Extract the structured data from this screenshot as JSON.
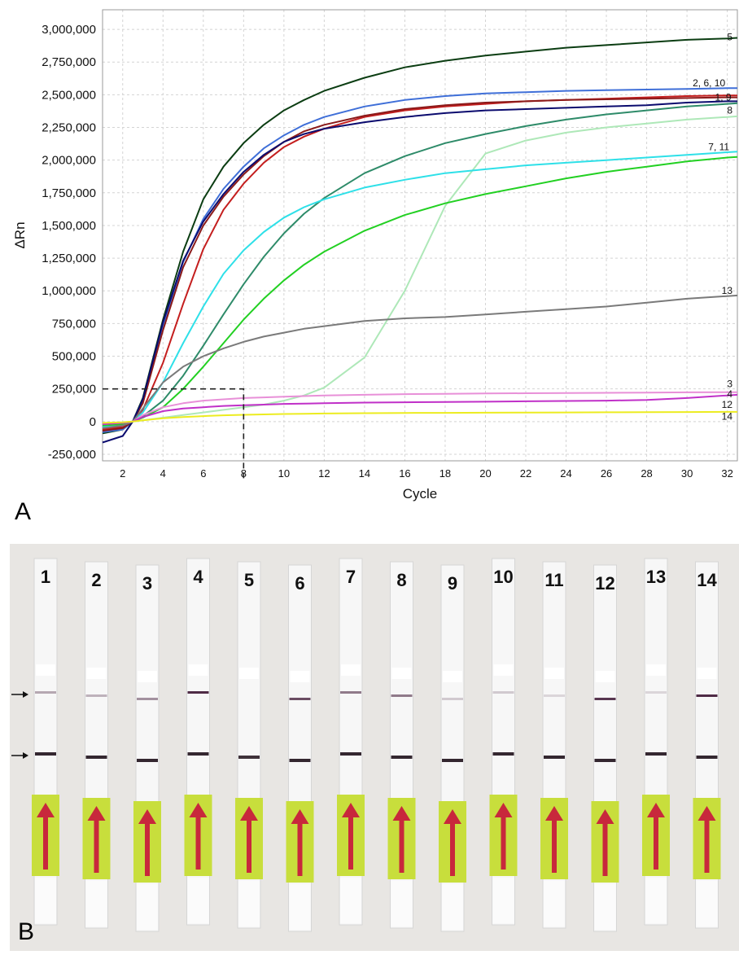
{
  "panels": {
    "a_label": "A",
    "b_label": "B"
  },
  "chart_data": {
    "type": "line",
    "xlabel": "Cycle",
    "ylabel": "ΔRn",
    "xlim": [
      1,
      32.5
    ],
    "ylim": [
      -300000,
      3150000
    ],
    "xticks": [
      2,
      4,
      6,
      8,
      10,
      12,
      14,
      16,
      18,
      20,
      22,
      24,
      26,
      28,
      30,
      32
    ],
    "yticks": [
      -250000,
      0,
      250000,
      500000,
      750000,
      1000000,
      1250000,
      1500000,
      1750000,
      2000000,
      2250000,
      2500000,
      2750000,
      3000000
    ],
    "ytick_labels": [
      "-250,000",
      "0",
      "250,000",
      "500,000",
      "750,000",
      "1,000,000",
      "1,250,000",
      "1,500,000",
      "1,750,000",
      "2,000,000",
      "2,250,000",
      "2,500,000",
      "2,750,000",
      "3,000,000"
    ],
    "grid": true,
    "threshold": {
      "y": 250000,
      "x": 8
    },
    "x": [
      1,
      2,
      2.5,
      3,
      4,
      5,
      6,
      7,
      8,
      9,
      10,
      11,
      12,
      14,
      16,
      18,
      20,
      22,
      24,
      26,
      28,
      30,
      32,
      32.5
    ],
    "series": [
      {
        "color": "#0b3d12",
        "values": [
          -90000,
          -60000,
          0,
          180000,
          780000,
          1300000,
          1700000,
          1950000,
          2130000,
          2270000,
          2380000,
          2460000,
          2530000,
          2630000,
          2710000,
          2760000,
          2800000,
          2830000,
          2860000,
          2880000,
          2900000,
          2920000,
          2930000,
          2935000
        ]
      },
      {
        "color": "#3f6fd8",
        "values": [
          -80000,
          -60000,
          0,
          150000,
          720000,
          1220000,
          1550000,
          1780000,
          1950000,
          2090000,
          2190000,
          2270000,
          2330000,
          2410000,
          2460000,
          2490000,
          2510000,
          2520000,
          2530000,
          2535000,
          2540000,
          2545000,
          2550000,
          2550000
        ]
      },
      {
        "color": "#c41e1e",
        "values": [
          -60000,
          -40000,
          0,
          90000,
          450000,
          900000,
          1320000,
          1620000,
          1820000,
          1980000,
          2100000,
          2180000,
          2240000,
          2330000,
          2380000,
          2410000,
          2430000,
          2450000,
          2460000,
          2470000,
          2480000,
          2490000,
          2495000,
          2495000
        ]
      },
      {
        "color": "#8b1a1a",
        "values": [
          -70000,
          -50000,
          0,
          140000,
          700000,
          1180000,
          1500000,
          1720000,
          1890000,
          2030000,
          2140000,
          2220000,
          2270000,
          2340000,
          2390000,
          2420000,
          2440000,
          2450000,
          2460000,
          2465000,
          2470000,
          2475000,
          2480000,
          2480000
        ]
      },
      {
        "color": "#0b0b6e",
        "values": [
          -160000,
          -110000,
          0,
          170000,
          760000,
          1230000,
          1530000,
          1740000,
          1910000,
          2040000,
          2140000,
          2200000,
          2240000,
          2290000,
          2330000,
          2360000,
          2380000,
          2390000,
          2400000,
          2410000,
          2420000,
          2440000,
          2450000,
          2450000
        ]
      },
      {
        "color": "#2e8b69",
        "values": [
          -30000,
          -20000,
          0,
          40000,
          160000,
          350000,
          580000,
          820000,
          1050000,
          1260000,
          1440000,
          1590000,
          1710000,
          1900000,
          2030000,
          2130000,
          2200000,
          2260000,
          2310000,
          2350000,
          2380000,
          2410000,
          2430000,
          2435000
        ]
      },
      {
        "color": "#aee8b8",
        "values": [
          -20000,
          -10000,
          0,
          10000,
          30000,
          50000,
          70000,
          90000,
          110000,
          130000,
          160000,
          200000,
          260000,
          490000,
          1000000,
          1650000,
          2050000,
          2150000,
          2210000,
          2250000,
          2280000,
          2310000,
          2330000,
          2335000
        ]
      },
      {
        "color": "#2ee0e8",
        "values": [
          -40000,
          -30000,
          0,
          70000,
          300000,
          600000,
          880000,
          1130000,
          1310000,
          1450000,
          1560000,
          1640000,
          1700000,
          1790000,
          1850000,
          1900000,
          1930000,
          1960000,
          1980000,
          2000000,
          2020000,
          2040000,
          2060000,
          2065000
        ]
      },
      {
        "color": "#22d022",
        "values": [
          -30000,
          -20000,
          0,
          30000,
          110000,
          250000,
          420000,
          600000,
          780000,
          940000,
          1080000,
          1200000,
          1300000,
          1460000,
          1580000,
          1670000,
          1740000,
          1800000,
          1860000,
          1910000,
          1950000,
          1990000,
          2020000,
          2025000
        ]
      },
      {
        "color": "#7a7a7a",
        "values": [
          -50000,
          -30000,
          0,
          100000,
          300000,
          420000,
          500000,
          560000,
          610000,
          650000,
          680000,
          710000,
          730000,
          770000,
          790000,
          800000,
          820000,
          840000,
          860000,
          880000,
          910000,
          940000,
          960000,
          965000
        ]
      },
      {
        "color": "#e890d8",
        "values": [
          -20000,
          -10000,
          0,
          50000,
          110000,
          140000,
          160000,
          170000,
          180000,
          185000,
          190000,
          195000,
          200000,
          205000,
          210000,
          212000,
          215000,
          217000,
          218000,
          220000,
          222000,
          224000,
          225000,
          225000
        ]
      },
      {
        "color": "#c030c8",
        "values": [
          -20000,
          -10000,
          0,
          35000,
          80000,
          100000,
          110000,
          120000,
          125000,
          130000,
          135000,
          138000,
          140000,
          145000,
          148000,
          150000,
          152000,
          155000,
          158000,
          160000,
          165000,
          180000,
          200000,
          205000
        ]
      },
      {
        "color": "#ecec20",
        "values": [
          -10000,
          -5000,
          0,
          10000,
          25000,
          35000,
          42000,
          48000,
          52000,
          55000,
          58000,
          60000,
          62000,
          64000,
          66000,
          67000,
          68000,
          69000,
          70000,
          71000,
          72000,
          73000,
          74000,
          74000
        ]
      }
    ],
    "annotations": [
      {
        "text": "5",
        "x": 32.6,
        "y": 2940000
      },
      {
        "text": "2, 6, 10",
        "x": 31.9,
        "y": 2590000
      },
      {
        "text": "1, 9",
        "x": 32.2,
        "y": 2480000
      },
      {
        "text": "8",
        "x": 32.5,
        "y": 2380000
      },
      {
        "text": "7, 11",
        "x": 32.1,
        "y": 2100000
      },
      {
        "text": "13",
        "x": 32.3,
        "y": 1000000
      },
      {
        "text": "3",
        "x": 32.6,
        "y": 290000
      },
      {
        "text": "4",
        "x": 32.6,
        "y": 210000
      },
      {
        "text": "12",
        "x": 32.3,
        "y": 130000
      },
      {
        "text": "14",
        "x": 32.3,
        "y": 40000
      }
    ]
  },
  "strips": {
    "labels": [
      "1",
      "2",
      "3",
      "4",
      "5",
      "6",
      "7",
      "8",
      "9",
      "10",
      "11",
      "12",
      "13",
      "14"
    ],
    "label_display": [
      "1",
      "2",
      "3",
      "4",
      "5",
      "6",
      "7",
      "8",
      "9",
      "10",
      "11",
      "12",
      "13",
      "14"
    ],
    "test_line_intensity": [
      0.35,
      0.3,
      0.45,
      0.9,
      0.0,
      0.75,
      0.55,
      0.55,
      0.2,
      0.2,
      0.15,
      0.85,
      0.15,
      0.9
    ],
    "control_line_intensity": [
      0.9,
      0.9,
      0.9,
      0.9,
      0.85,
      0.9,
      0.9,
      0.9,
      0.9,
      0.9,
      0.9,
      0.9,
      0.9,
      0.9
    ],
    "pad_color": "#c8de3c",
    "arrow_color": "#c8283c"
  }
}
